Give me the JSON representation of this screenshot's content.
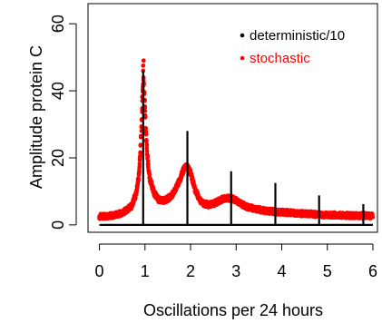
{
  "chart_data": {
    "type": "line",
    "title": "",
    "xlabel": "Oscillations per 24 hours",
    "ylabel": "Amplitude protein C",
    "xlim": [
      -0.25,
      6.1
    ],
    "ylim": [
      -2.2,
      66
    ],
    "x_ticks": [
      0,
      1,
      2,
      3,
      4,
      5,
      6
    ],
    "y_ticks": [
      0,
      20,
      40,
      60
    ],
    "grid": false,
    "legend_position": "top-right",
    "series": [
      {
        "name": "deterministic/10",
        "color": "#000000",
        "style": "spikes",
        "baseline": 0,
        "x": [
          0.96,
          1.93,
          2.89,
          3.86,
          4.82,
          5.79
        ],
        "values": [
          46,
          28,
          16,
          12.5,
          8.8,
          6.2
        ]
      },
      {
        "name": "stochastic",
        "color": "#ff0000",
        "style": "points",
        "x": [
          0.0,
          0.3,
          0.5,
          0.7,
          0.8,
          0.86,
          0.9,
          0.93,
          0.95,
          0.97,
          0.99,
          1.02,
          1.06,
          1.1,
          1.2,
          1.3,
          1.4,
          1.5,
          1.6,
          1.7,
          1.78,
          1.85,
          1.9,
          1.95,
          2.0,
          2.05,
          2.1,
          2.2,
          2.3,
          2.4,
          2.5,
          2.6,
          2.7,
          2.8,
          2.9,
          3.0,
          3.1,
          3.2,
          3.4,
          3.6,
          3.8,
          4.0,
          4.5,
          5.0,
          5.5,
          6.0
        ],
        "values": [
          2.5,
          2.8,
          3.6,
          5.5,
          9,
          14,
          22,
          32,
          40,
          44,
          38,
          28,
          19,
          14,
          9.5,
          7.5,
          7.2,
          7.8,
          9,
          11.5,
          14,
          16.5,
          17.5,
          17,
          15.5,
          13,
          10.5,
          7.5,
          6.3,
          6,
          6.3,
          7,
          7.7,
          8,
          7.9,
          7.3,
          6.4,
          5.6,
          4.8,
          4.3,
          4,
          3.8,
          3.3,
          3,
          2.8,
          2.7
        ],
        "peak_outliers": {
          "x": [
            0.96,
            0.96,
            0.97
          ],
          "values": [
            46,
            47.5,
            49
          ]
        }
      }
    ]
  }
}
